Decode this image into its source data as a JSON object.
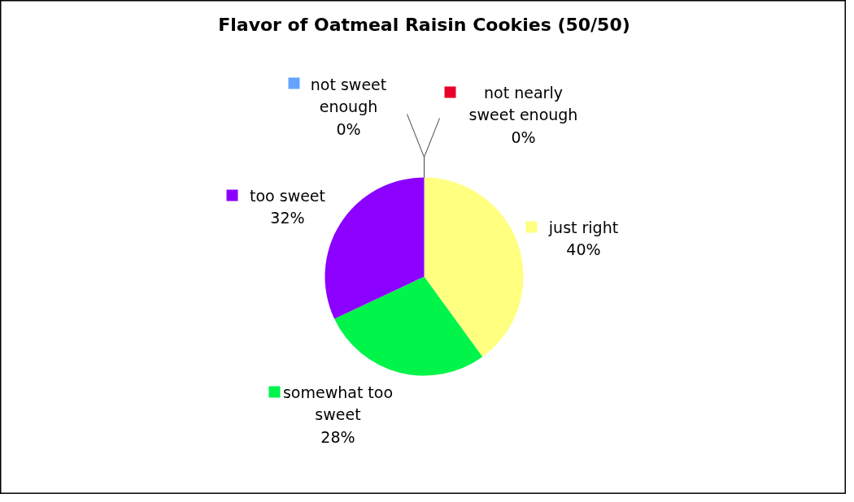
{
  "chart_data": {
    "type": "pie",
    "title": "Flavor of Oatmeal Raisin Cookies (50/50)",
    "categories": [
      "just right",
      "somewhat too sweet",
      "too sweet",
      "not sweet enough",
      "not nearly sweet enough"
    ],
    "values": [
      40,
      28,
      32,
      0,
      0
    ],
    "colors": [
      "#ffff80",
      "#00f44a",
      "#8c00ff",
      "#66a3ff",
      "#e8002a"
    ],
    "value_labels": [
      "40%",
      "28%",
      "32%",
      "0%",
      "0%"
    ],
    "legend": "center"
  }
}
